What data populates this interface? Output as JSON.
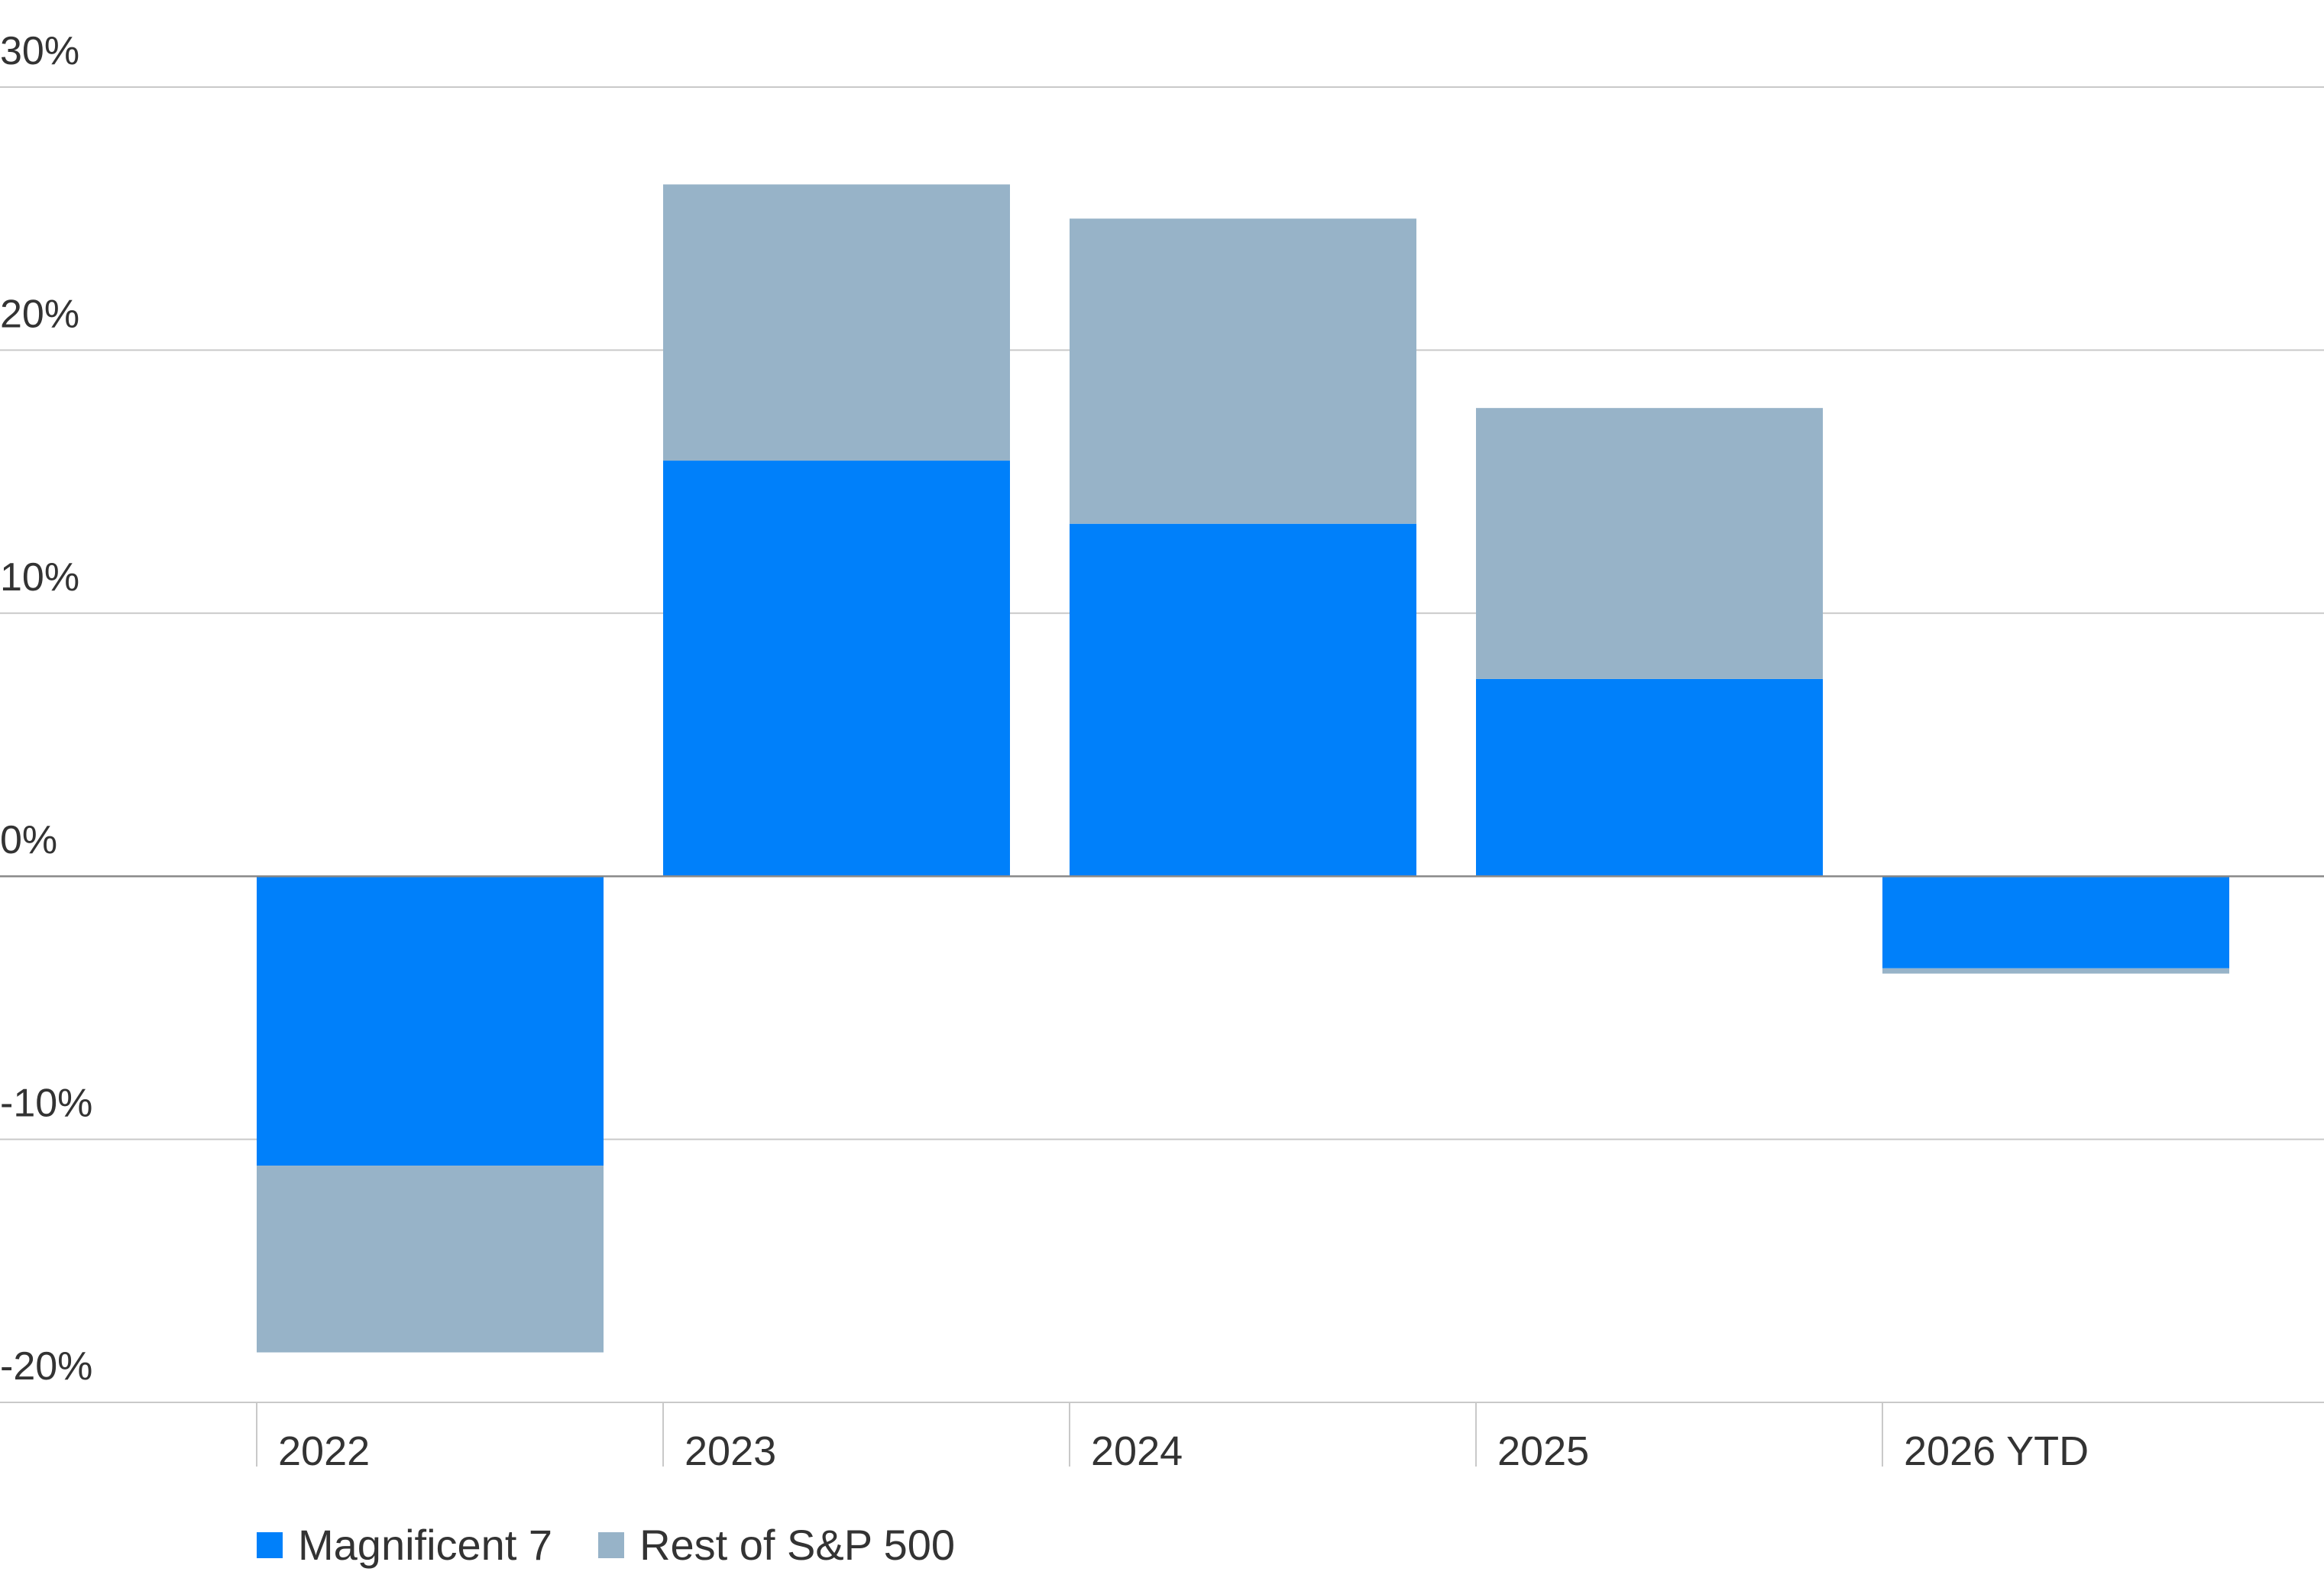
{
  "chart_data": {
    "type": "bar",
    "stacked": true,
    "categories": [
      "2022",
      "2023",
      "2024",
      "2025",
      "2026 YTD"
    ],
    "series": [
      {
        "name": "Magnificent 7",
        "color": "#0080FA",
        "values": [
          -11.0,
          15.8,
          13.4,
          7.5,
          -3.5
        ]
      },
      {
        "name": "Rest of S&P 500",
        "color": "#97B3C8",
        "values": [
          -7.1,
          10.5,
          11.6,
          10.3,
          -0.2
        ]
      }
    ],
    "ylim": [
      -20,
      30
    ],
    "yticks": [
      30,
      20,
      10,
      0,
      -10,
      -20
    ],
    "ytick_labels": [
      "30%",
      "20%",
      "10%",
      "0%",
      "-10%",
      "-20%"
    ],
    "grid": true,
    "legend": "bottom-left",
    "title": "",
    "xlabel": "",
    "ylabel": ""
  }
}
